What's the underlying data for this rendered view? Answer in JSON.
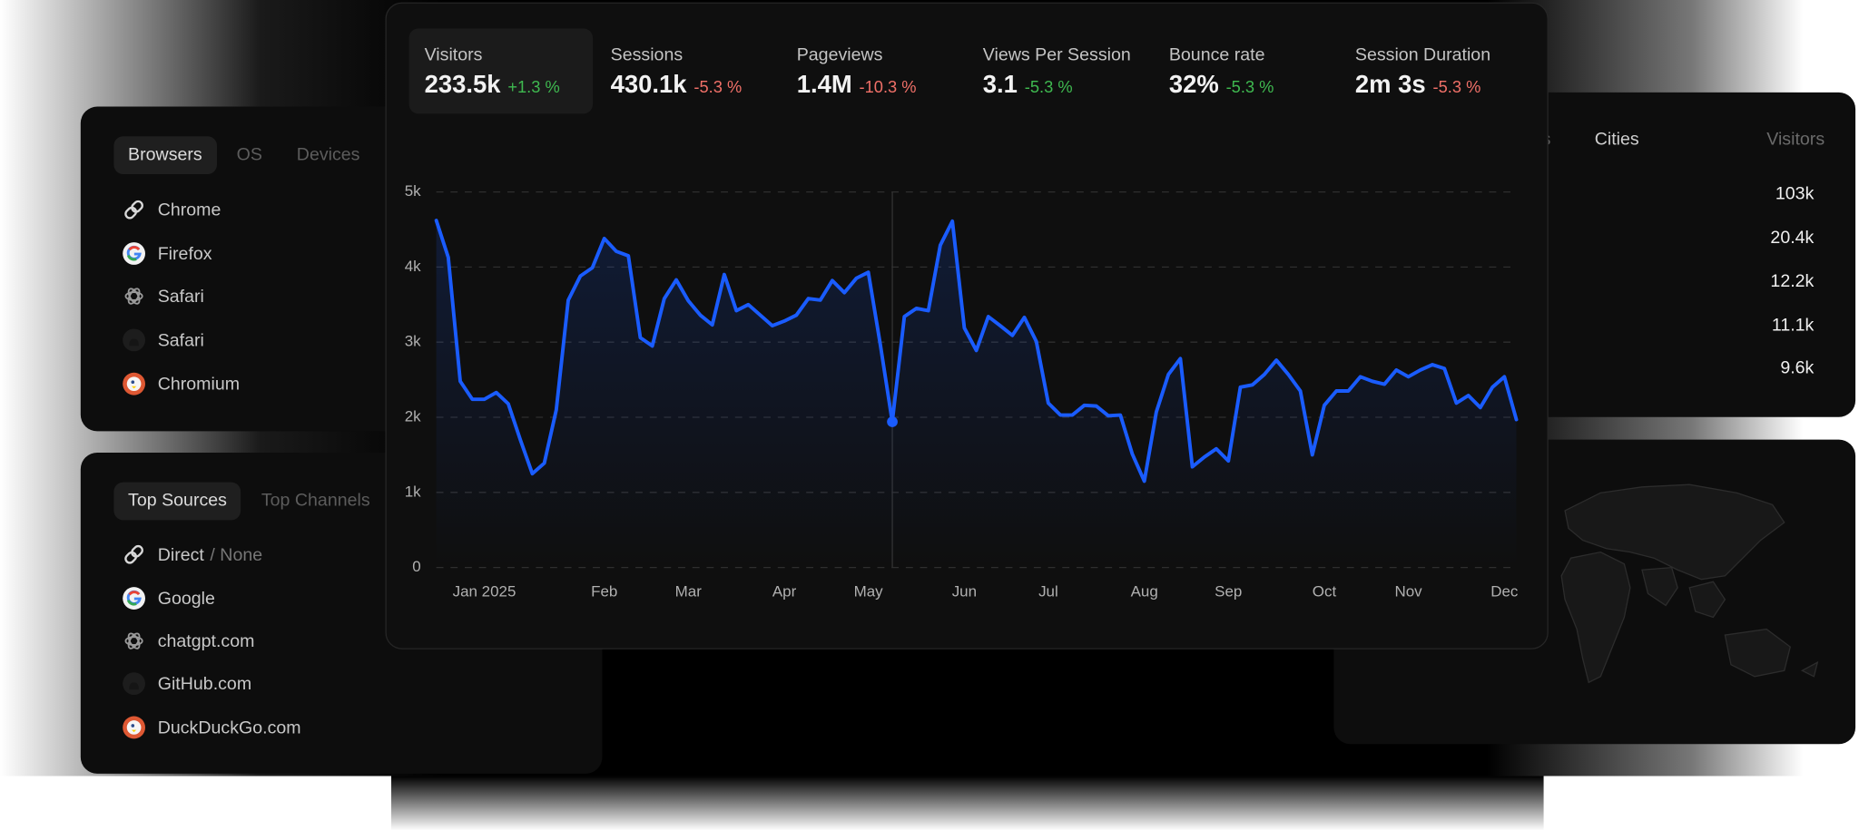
{
  "metrics": [
    {
      "label": "Visitors",
      "value": "233.5k",
      "change": "+1.3 %",
      "color": "#3fb950"
    },
    {
      "label": "Sessions",
      "value": "430.1k",
      "change": "-5.3 %",
      "color": "#f07068"
    },
    {
      "label": "Pageviews",
      "value": "1.4M",
      "change": "-10.3 %",
      "color": "#f07068"
    },
    {
      "label": "Views Per Session",
      "value": "3.1",
      "change": "-5.3 %",
      "color": "#3fb950"
    },
    {
      "label": "Bounce rate",
      "value": "32%",
      "change": "-5.3 %",
      "color": "#3fb950"
    },
    {
      "label": "Session Duration",
      "value": "2m 3s",
      "change": "-5.3 %",
      "color": "#f07068"
    }
  ],
  "browsers_panel": {
    "tabs": [
      "Browsers",
      "OS",
      "Devices"
    ],
    "rows": [
      {
        "name": "Chrome"
      },
      {
        "name": "Firefox"
      },
      {
        "name": "Safari"
      },
      {
        "name": "Safari"
      },
      {
        "name": "Chromium"
      }
    ]
  },
  "sources_panel": {
    "tabs": [
      "Top Sources",
      "Top Channels"
    ],
    "rows": [
      {
        "name": "Direct",
        "note": "/ None"
      },
      {
        "name": "Google"
      },
      {
        "name": "chatgpt.com"
      },
      {
        "name": "GitHub.com"
      },
      {
        "name": "DuckDuckGo.com"
      }
    ]
  },
  "locations_panel": {
    "tabs": [
      "Regions",
      "Cities"
    ],
    "column": "Visitors",
    "values": [
      "103k",
      "20.4k",
      "12.2k",
      "11.1k",
      "9.6k"
    ]
  },
  "chart_data": {
    "type": "line",
    "color": "#1a5cff",
    "grid": true,
    "hover_index": 38,
    "categories": [
      null,
      null,
      null,
      null,
      "Jan 2025",
      null,
      null,
      null,
      null,
      null,
      null,
      null,
      null,
      null,
      "Feb",
      null,
      null,
      null,
      null,
      null,
      null,
      "Mar",
      null,
      null,
      null,
      null,
      null,
      null,
      null,
      "Apr",
      null,
      null,
      null,
      null,
      null,
      null,
      "May",
      null,
      null,
      null,
      null,
      null,
      null,
      null,
      "Jun",
      null,
      null,
      null,
      null,
      null,
      null,
      "Jul",
      null,
      null,
      null,
      null,
      null,
      null,
      null,
      "Aug",
      null,
      null,
      null,
      null,
      null,
      null,
      "Sep",
      null,
      null,
      null,
      null,
      null,
      null,
      null,
      "Oct",
      null,
      null,
      null,
      null,
      null,
      null,
      "Nov",
      null,
      null,
      null,
      null,
      null,
      null,
      null,
      "Dec",
      null
    ],
    "values": [
      4620,
      4130,
      2480,
      2240,
      2240,
      2330,
      2180,
      1700,
      1250,
      1390,
      2100,
      3560,
      3880,
      3990,
      4380,
      4210,
      4150,
      3060,
      2950,
      3580,
      3830,
      3550,
      3360,
      3230,
      3900,
      3420,
      3500,
      3360,
      3220,
      3280,
      3360,
      3580,
      3560,
      3820,
      3660,
      3850,
      3930,
      2970,
      1940,
      3340,
      3450,
      3420,
      4290,
      4610,
      3190,
      2890,
      3340,
      3220,
      3090,
      3330,
      3010,
      2190,
      2030,
      2030,
      2160,
      2150,
      2020,
      2030,
      1510,
      1150,
      2070,
      2570,
      2780,
      1340,
      1470,
      1580,
      1420,
      2400,
      2430,
      2570,
      2760,
      2570,
      2350,
      1500,
      2160,
      2350,
      2350,
      2540,
      2480,
      2440,
      2630,
      2540,
      2630,
      2700,
      2650,
      2190,
      2290,
      2130,
      2400,
      2540,
      1970
    ],
    "ylim": [
      0,
      5000
    ],
    "yticks": [
      0,
      {
        "value": 1000,
        "label": "1k"
      },
      {
        "value": 2000,
        "label": "2k"
      },
      {
        "value": 3000,
        "label": "3k"
      },
      {
        "value": 4000,
        "label": "4k"
      },
      {
        "value": 5000,
        "label": "5k"
      }
    ]
  }
}
